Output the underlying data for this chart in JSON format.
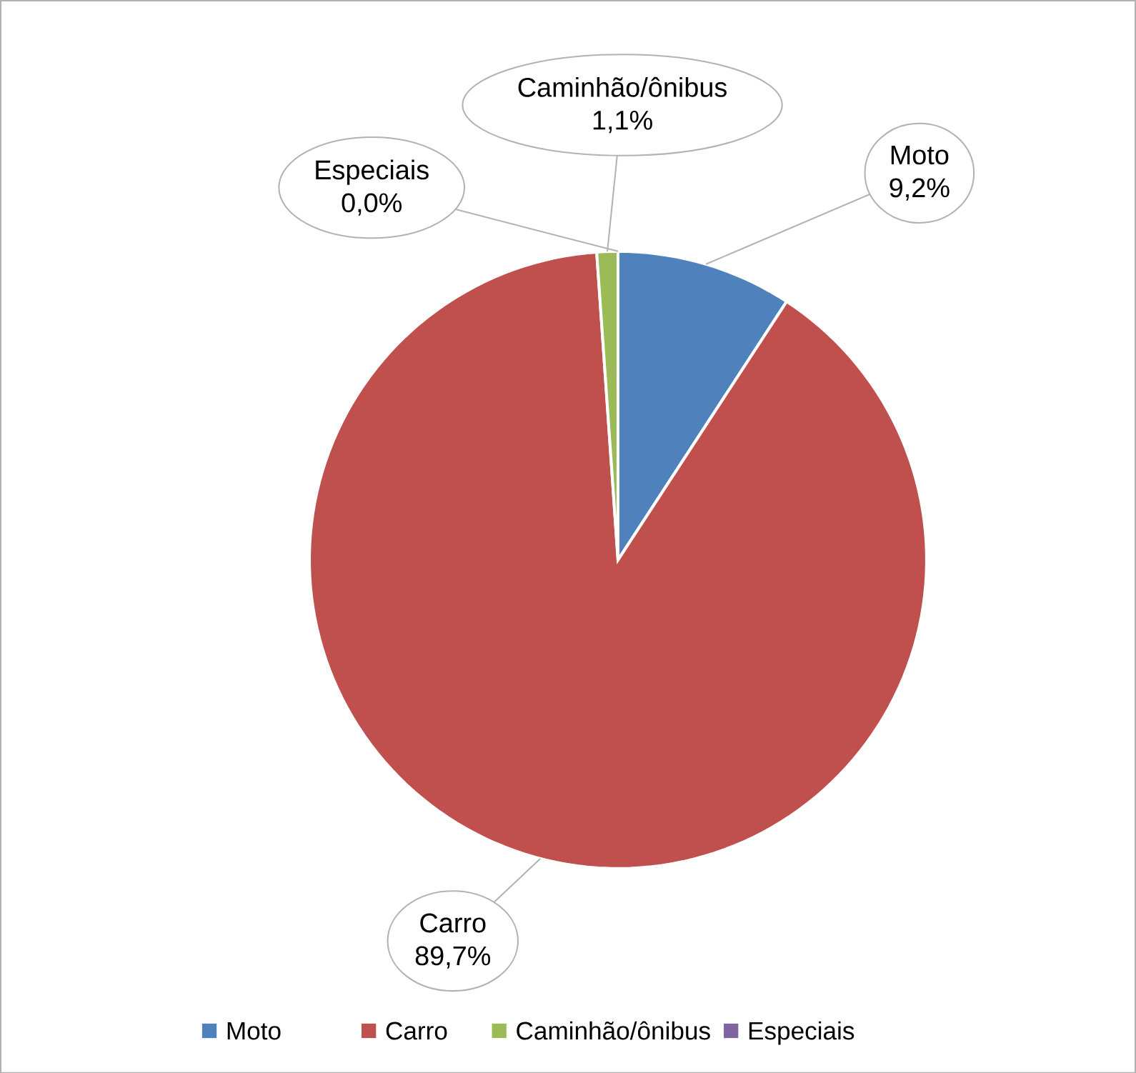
{
  "chart_data": {
    "type": "pie",
    "categories": [
      "Moto",
      "Carro",
      "Caminhão/ônibus",
      "Especiais"
    ],
    "values": [
      9.2,
      89.7,
      1.1,
      0.0
    ],
    "colors": [
      "#4f81bd",
      "#c0504d",
      "#9bbb59",
      "#8064a2"
    ],
    "value_labels": [
      "9,2%",
      "89,7%",
      "1,1%",
      "0,0%"
    ],
    "legend": "bottom"
  }
}
